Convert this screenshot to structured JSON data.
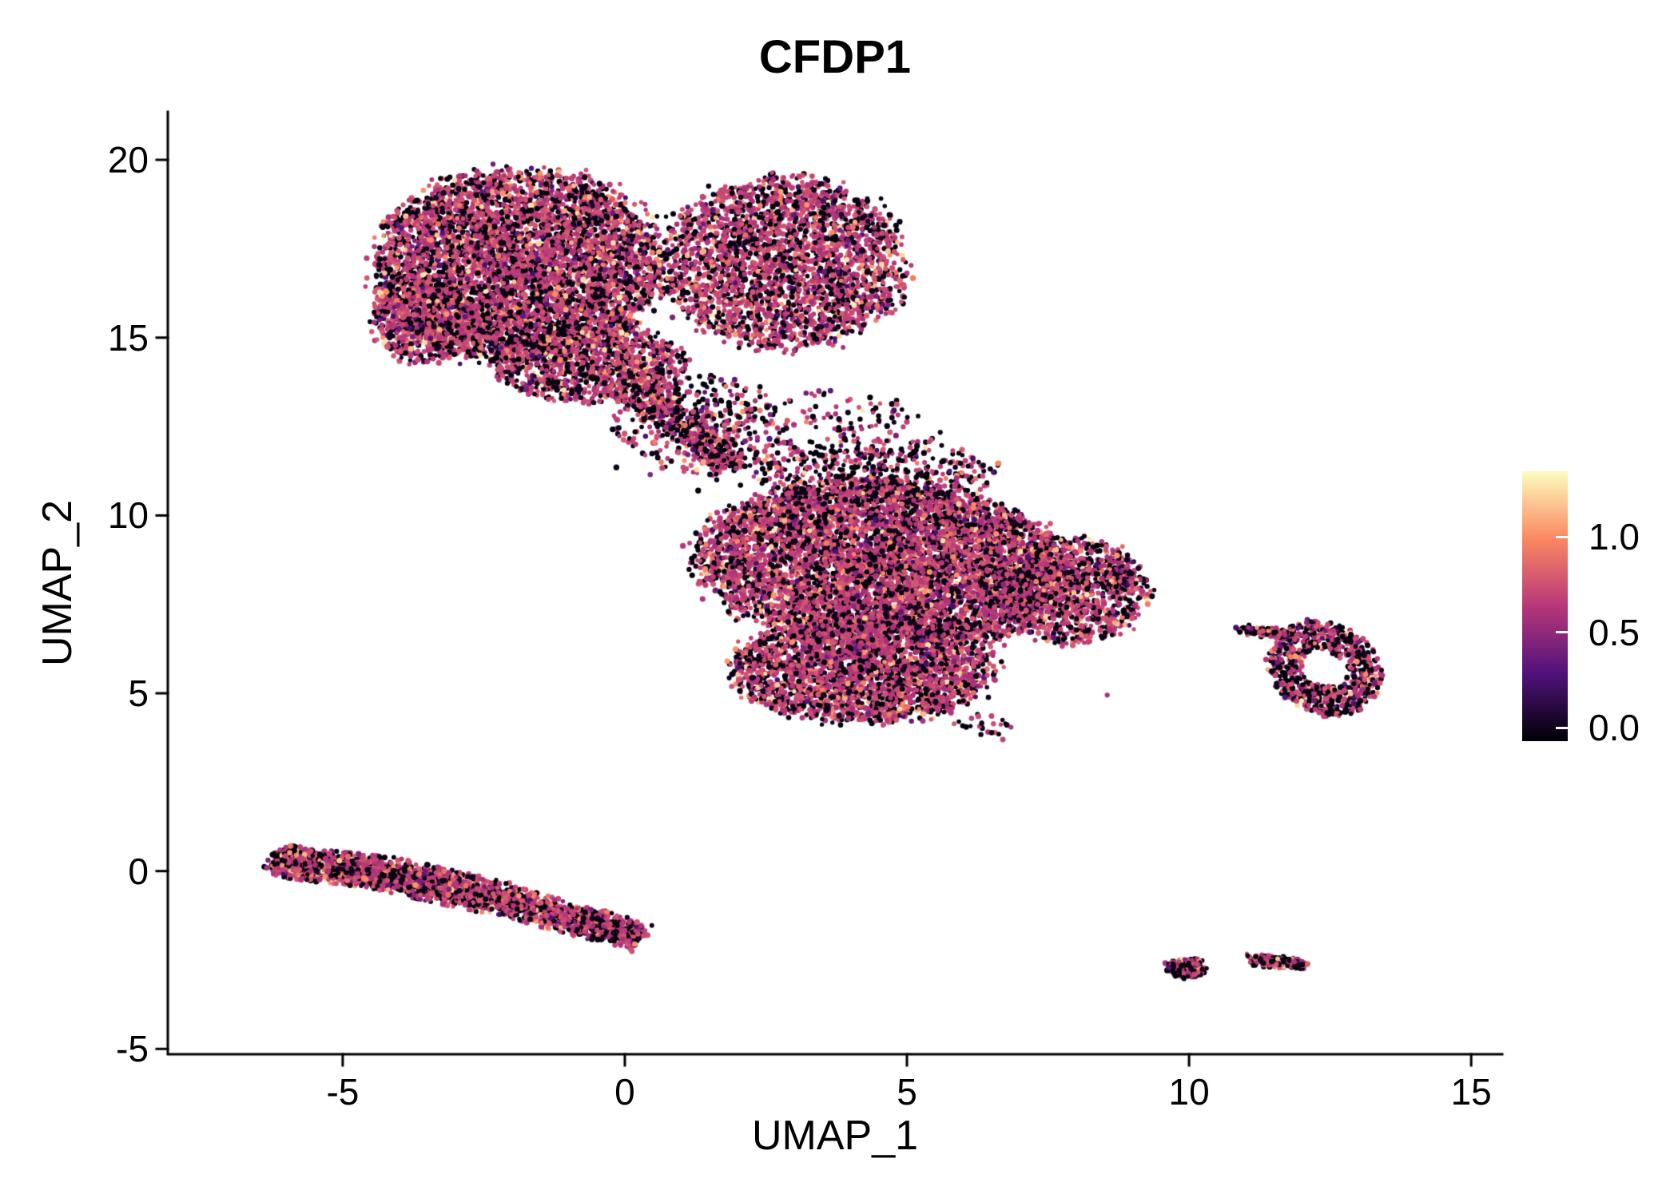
{
  "chart_data": {
    "type": "scatter",
    "title": "CFDP1",
    "xlabel": "UMAP_1",
    "ylabel": "UMAP_2",
    "xlim": [
      -8.1,
      15.55
    ],
    "ylim": [
      -5.15,
      21.35
    ],
    "x_ticks": [
      -5,
      0,
      5,
      10,
      15
    ],
    "y_ticks": [
      -5,
      0,
      5,
      10,
      15,
      20
    ],
    "grid": false,
    "legend_position": "right",
    "colormap": {
      "name": "magma",
      "stops": [
        {
          "f": 0.0,
          "color": "#000004"
        },
        {
          "f": 0.25,
          "color": "#51127c"
        },
        {
          "f": 0.5,
          "color": "#b73779"
        },
        {
          "f": 0.75,
          "color": "#fb8861"
        },
        {
          "f": 1.0,
          "color": "#fcfdbf"
        }
      ]
    },
    "colorbar": {
      "tick_labels": [
        "1.0",
        "0.5",
        "0.0"
      ],
      "tick_values": [
        1.0,
        0.5,
        0.0
      ],
      "vmin": -0.07,
      "vmax": 1.345
    },
    "expression_mix": {
      "default": [
        {
          "w": 0.32,
          "fmin": 0.0,
          "fmax": 0.06
        },
        {
          "w": 0.05,
          "fmin": 0.2,
          "fmax": 0.4
        },
        {
          "w": 0.54,
          "fmin": 0.45,
          "fmax": 0.62
        },
        {
          "w": 0.06,
          "fmin": 0.66,
          "fmax": 0.8
        },
        {
          "w": 0.03,
          "fmin": 0.82,
          "fmax": 0.97
        }
      ],
      "dark": [
        {
          "w": 0.46,
          "fmin": 0.0,
          "fmax": 0.06
        },
        {
          "w": 0.06,
          "fmin": 0.2,
          "fmax": 0.4
        },
        {
          "w": 0.4,
          "fmin": 0.45,
          "fmax": 0.62
        },
        {
          "w": 0.05,
          "fmin": 0.66,
          "fmax": 0.8
        },
        {
          "w": 0.03,
          "fmin": 0.82,
          "fmax": 0.97
        }
      ]
    },
    "clusters": [
      {
        "id": "upper-left-main",
        "kind": "ellipse",
        "cx": -1.9,
        "cy": 17.0,
        "rx": 2.5,
        "ry": 2.7,
        "rot": 0,
        "n": 5200
      },
      {
        "id": "upper-left-west-bulge",
        "kind": "ellipse",
        "cx": -3.6,
        "cy": 15.6,
        "rx": 0.9,
        "ry": 1.3,
        "rot": 0,
        "n": 700
      },
      {
        "id": "upper-right-lobe",
        "kind": "ellipse",
        "cx": 2.8,
        "cy": 17.1,
        "rx": 2.15,
        "ry": 2.4,
        "rot": 0,
        "n": 2800
      },
      {
        "id": "upper-south-shelf",
        "kind": "ellipse",
        "cx": -0.6,
        "cy": 14.3,
        "rx": 1.7,
        "ry": 1.1,
        "rot": 0,
        "n": 1000
      },
      {
        "id": "bridge",
        "kind": "segment",
        "x1": 0.0,
        "y1": 13.9,
        "x2": 1.9,
        "y2": 11.4,
        "th": 0.5,
        "n": 550
      },
      {
        "id": "bridge-halo",
        "kind": "ellipse",
        "cx": 1.3,
        "cy": 12.6,
        "rx": 1.5,
        "ry": 1.4,
        "rot": 0,
        "n": 300,
        "mix": "dark"
      },
      {
        "id": "mid-sparse",
        "kind": "ellipse",
        "cx": 3.6,
        "cy": 12.2,
        "rx": 2.0,
        "ry": 1.3,
        "rot": 0,
        "n": 230,
        "mix": "dark"
      },
      {
        "id": "central-main",
        "kind": "ellipse",
        "cx": 4.6,
        "cy": 8.6,
        "rx": 3.3,
        "ry": 2.3,
        "rot": -8,
        "n": 6500
      },
      {
        "id": "central-lower",
        "kind": "ellipse",
        "cx": 4.2,
        "cy": 5.7,
        "rx": 2.3,
        "ry": 1.5,
        "rot": 0,
        "n": 2600
      },
      {
        "id": "central-east",
        "kind": "ellipse",
        "cx": 7.9,
        "cy": 7.9,
        "rx": 1.3,
        "ry": 1.5,
        "rot": 0,
        "n": 1100
      },
      {
        "id": "central-east-nub",
        "kind": "ellipse",
        "cx": 8.8,
        "cy": 8.2,
        "rx": 0.35,
        "ry": 0.3,
        "rot": 0,
        "n": 120
      },
      {
        "id": "central-top-fringe",
        "kind": "ellipse",
        "cx": 4.5,
        "cy": 11.2,
        "rx": 2.2,
        "ry": 0.9,
        "rot": 0,
        "n": 420,
        "mix": "dark"
      },
      {
        "id": "central-south-strays",
        "kind": "ellipse",
        "cx": 6.3,
        "cy": 4.1,
        "rx": 0.55,
        "ry": 0.35,
        "rot": 0,
        "n": 25,
        "mix": "dark"
      },
      {
        "id": "lower-left-band-1",
        "kind": "segment",
        "x1": -6.2,
        "y1": 0.3,
        "x2": -4.3,
        "y2": -0.05,
        "th": 0.45,
        "n": 1100
      },
      {
        "id": "lower-left-band-2",
        "kind": "segment",
        "x1": -4.3,
        "y1": -0.05,
        "x2": -2.3,
        "y2": -0.75,
        "th": 0.48,
        "n": 1100
      },
      {
        "id": "lower-left-band-3",
        "kind": "segment",
        "x1": -2.3,
        "y1": -0.75,
        "x2": 0.25,
        "y2": -1.85,
        "th": 0.42,
        "n": 1100
      },
      {
        "id": "right-ring",
        "kind": "annulus",
        "cx": 12.4,
        "cy": 5.7,
        "rx": 0.95,
        "ry": 1.35,
        "inner": 0.42,
        "rot": 15,
        "n": 780,
        "mix": "dark"
      },
      {
        "id": "right-ring-streak",
        "kind": "segment",
        "x1": 10.95,
        "y1": 6.8,
        "x2": 11.75,
        "y2": 6.65,
        "th": 0.14,
        "n": 130,
        "mix": "dark"
      },
      {
        "id": "bottom-right-blob",
        "kind": "ellipse",
        "cx": 9.95,
        "cy": -2.72,
        "rx": 0.36,
        "ry": 0.25,
        "rot": 0,
        "n": 260,
        "mix": "dark"
      },
      {
        "id": "bottom-right-dash",
        "kind": "segment",
        "x1": 11.15,
        "y1": -2.5,
        "x2": 12.0,
        "y2": -2.62,
        "th": 0.16,
        "n": 230,
        "mix": "dark"
      },
      {
        "id": "outlier-points",
        "kind": "points",
        "pts": [
          [
            6.7,
            3.7
          ],
          [
            6.05,
            4.05
          ],
          [
            1.3,
            10.7
          ],
          [
            0.45,
            11.15
          ],
          [
            -0.15,
            11.35
          ],
          [
            2.05,
            10.85
          ],
          [
            8.55,
            4.95
          ]
        ],
        "mix": "dark"
      }
    ]
  }
}
